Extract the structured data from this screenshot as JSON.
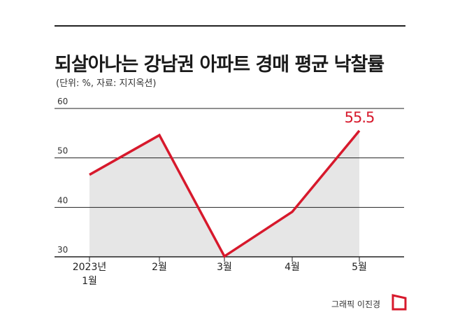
{
  "title": "되살아나는 강남권 아파트 경매 평균 낙찰률",
  "subtitle": "(단위: %, 자료: 지지옥션)",
  "credit": "그래픽 이진경",
  "colors": {
    "line": "#d7192c",
    "area": "#e6e6e6",
    "grid": "#222222",
    "text": "#222222"
  },
  "chart_data": {
    "type": "area",
    "categories": [
      "2023년\n1월",
      "2월",
      "3월",
      "4월",
      "5월"
    ],
    "values": [
      46.6,
      54.6,
      30.1,
      39.1,
      55.5
    ],
    "ylim": [
      30,
      60
    ],
    "yticks": [
      30,
      40,
      50,
      60
    ],
    "grid": true,
    "highlight": {
      "index": 4,
      "label": "55.5"
    }
  }
}
